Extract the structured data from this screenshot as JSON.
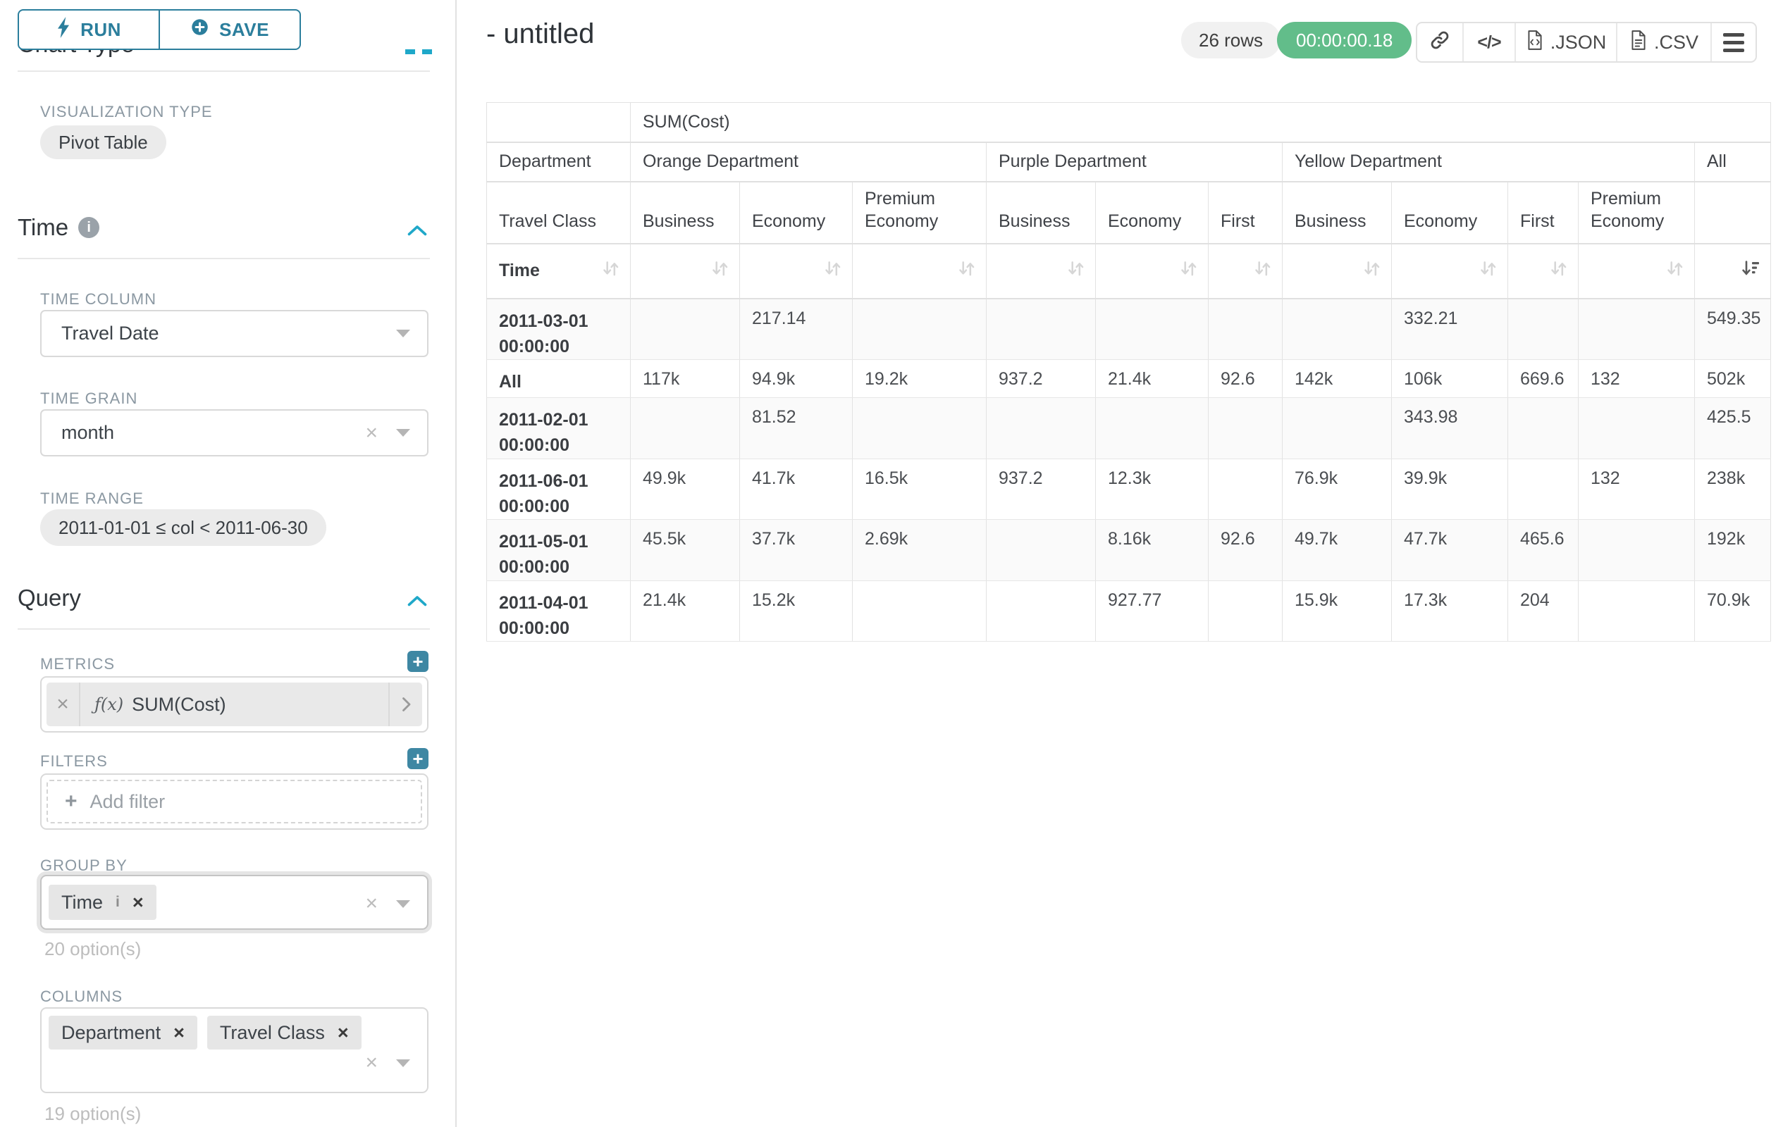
{
  "sidebar": {
    "run_label": "RUN",
    "save_label": "SAVE",
    "chart_type_heading": "Chart Type",
    "viz_label": "VISUALIZATION TYPE",
    "viz_value": "Pivot Table",
    "time_heading": "Time",
    "time_column_label": "TIME COLUMN",
    "time_column_value": "Travel Date",
    "time_grain_label": "TIME GRAIN",
    "time_grain_value": "month",
    "time_range_label": "TIME RANGE",
    "time_range_value": "2011-01-01 ≤ col < 2011-06-30",
    "query_heading": "Query",
    "metrics_label": "METRICS",
    "metric_fx": "ƒ(x)",
    "metric_name": "SUM(Cost)",
    "filters_label": "FILTERS",
    "add_filter_label": "Add filter",
    "group_by_label": "GROUP BY",
    "group_by_chip": "Time",
    "group_by_chip_info": "i",
    "group_by_options": "20 option(s)",
    "columns_label": "COLUMNS",
    "columns_chips": [
      {
        "label": "Department"
      },
      {
        "label": "Travel Class"
      }
    ],
    "columns_options": "19 option(s)"
  },
  "result_header": {
    "title": "- untitled",
    "rows_count": "26 rows",
    "duration": "00:00:00.18",
    "json_label": ".JSON",
    "csv_label": ".CSV"
  },
  "pivot": {
    "metric_header": "SUM(Cost)",
    "row_dim_label": "Department",
    "class_dim_label": "Travel Class",
    "time_dim_label": "Time",
    "all_label": "All",
    "groups": [
      {
        "label": "Orange Department",
        "columns": [
          "Business",
          "Economy",
          "Premium Economy"
        ]
      },
      {
        "label": "Purple Department",
        "columns": [
          "Business",
          "Economy",
          "First"
        ]
      },
      {
        "label": "Yellow Department",
        "columns": [
          "Business",
          "Economy",
          "First",
          "Premium Economy"
        ]
      }
    ],
    "rows": [
      {
        "label": "2011-03-01 00:00:00",
        "values": [
          "",
          "217.14",
          "",
          "",
          "",
          "",
          "",
          "332.21",
          "",
          "",
          "549.35"
        ]
      },
      {
        "label": "All",
        "values": [
          "117k",
          "94.9k",
          "19.2k",
          "937.2",
          "21.4k",
          "92.6",
          "142k",
          "106k",
          "669.6",
          "132",
          "502k"
        ]
      },
      {
        "label": "2011-02-01 00:00:00",
        "values": [
          "",
          "81.52",
          "",
          "",
          "",
          "",
          "",
          "343.98",
          "",
          "",
          "425.5"
        ]
      },
      {
        "label": "2011-06-01 00:00:00",
        "values": [
          "49.9k",
          "41.7k",
          "16.5k",
          "937.2",
          "12.3k",
          "",
          "76.9k",
          "39.9k",
          "",
          "132",
          "238k"
        ]
      },
      {
        "label": "2011-05-01 00:00:00",
        "values": [
          "45.5k",
          "37.7k",
          "2.69k",
          "",
          "8.16k",
          "92.6",
          "49.7k",
          "47.7k",
          "465.6",
          "",
          "192k"
        ]
      },
      {
        "label": "2011-04-01 00:00:00",
        "values": [
          "21.4k",
          "15.2k",
          "",
          "",
          "927.77",
          "",
          "15.9k",
          "17.3k",
          "204",
          "",
          "70.9k"
        ]
      }
    ]
  },
  "colors": {
    "accent_teal": "#2b7e9c",
    "bright_blue": "#1fa8c9",
    "success_green": "#62bd8a"
  }
}
